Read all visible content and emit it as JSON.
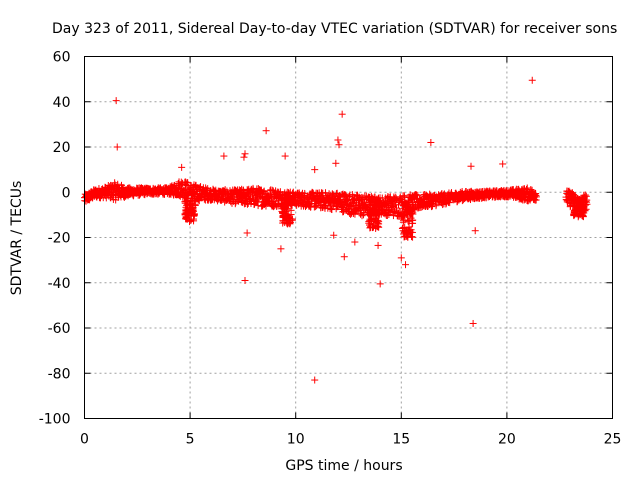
{
  "chart_data": {
    "type": "scatter",
    "title": "Day 323 of 2011, Sidereal Day-to-day VTEC variation (SDTVAR) for receiver sons",
    "xlabel": "GPS time / hours",
    "ylabel": "SDTVAR / TECUs",
    "xlim": [
      0,
      25
    ],
    "ylim": [
      -100,
      60
    ],
    "xticks": [
      0,
      5,
      10,
      15,
      20,
      25
    ],
    "yticks": [
      -100,
      -80,
      -60,
      -40,
      -20,
      0,
      20,
      40,
      60
    ],
    "grid": true,
    "marker": "+",
    "color": "#ff0000",
    "outliers": [
      {
        "x": 1.5,
        "y": 40.5
      },
      {
        "x": 1.55,
        "y": 20
      },
      {
        "x": 21.2,
        "y": 49.5
      },
      {
        "x": 12.2,
        "y": 34.5
      },
      {
        "x": 8.6,
        "y": 27.2
      },
      {
        "x": 12.0,
        "y": 23.1
      },
      {
        "x": 12.05,
        "y": 21.0
      },
      {
        "x": 16.4,
        "y": 22.0
      },
      {
        "x": 19.8,
        "y": 12.5
      },
      {
        "x": 18.3,
        "y": 11.5
      },
      {
        "x": 7.6,
        "y": 17.0
      },
      {
        "x": 7.55,
        "y": 15.5
      },
      {
        "x": 6.6,
        "y": 16.0
      },
      {
        "x": 9.5,
        "y": 16.0
      },
      {
        "x": 11.9,
        "y": 12.8
      },
      {
        "x": 10.9,
        "y": 10.0
      },
      {
        "x": 4.6,
        "y": 11.0
      },
      {
        "x": 7.6,
        "y": -39.0
      },
      {
        "x": 10.9,
        "y": -83.0
      },
      {
        "x": 14.0,
        "y": -40.5
      },
      {
        "x": 18.4,
        "y": -58.0
      },
      {
        "x": 12.3,
        "y": -28.5
      },
      {
        "x": 15.2,
        "y": -32.0
      },
      {
        "x": 15.0,
        "y": -29.0
      },
      {
        "x": 9.3,
        "y": -25.0
      },
      {
        "x": 7.7,
        "y": -18.0
      },
      {
        "x": 11.8,
        "y": -19.0
      },
      {
        "x": 18.5,
        "y": -17.0
      },
      {
        "x": 13.9,
        "y": -23.5
      },
      {
        "x": 12.8,
        "y": -22.0
      }
    ],
    "band": [
      {
        "x": 0.0,
        "y": -3.0,
        "spread": 2.0
      },
      {
        "x": 0.5,
        "y": -0.5,
        "spread": 2.0
      },
      {
        "x": 1.0,
        "y": 0.0,
        "spread": 2.5
      },
      {
        "x": 1.5,
        "y": 0.5,
        "spread": 4.0
      },
      {
        "x": 2.0,
        "y": 0.0,
        "spread": 2.0
      },
      {
        "x": 3.0,
        "y": 0.5,
        "spread": 1.5
      },
      {
        "x": 4.0,
        "y": 0.5,
        "spread": 1.5
      },
      {
        "x": 4.6,
        "y": 2.0,
        "spread": 4.0
      },
      {
        "x": 5.0,
        "y": 0.0,
        "spread": 4.0
      },
      {
        "x": 6.0,
        "y": -1.0,
        "spread": 2.5
      },
      {
        "x": 7.0,
        "y": -2.0,
        "spread": 3.0
      },
      {
        "x": 8.0,
        "y": -2.0,
        "spread": 4.0
      },
      {
        "x": 9.0,
        "y": -2.5,
        "spread": 4.0
      },
      {
        "x": 10.0,
        "y": -3.0,
        "spread": 3.0
      },
      {
        "x": 11.0,
        "y": -3.5,
        "spread": 3.5
      },
      {
        "x": 12.0,
        "y": -4.0,
        "spread": 4.0
      },
      {
        "x": 13.0,
        "y": -6.0,
        "spread": 5.0
      },
      {
        "x": 14.0,
        "y": -6.0,
        "spread": 4.0
      },
      {
        "x": 15.0,
        "y": -6.0,
        "spread": 5.0
      },
      {
        "x": 16.0,
        "y": -4.0,
        "spread": 3.0
      },
      {
        "x": 17.0,
        "y": -3.0,
        "spread": 2.5
      },
      {
        "x": 18.0,
        "y": -1.5,
        "spread": 2.0
      },
      {
        "x": 19.0,
        "y": -1.0,
        "spread": 1.5
      },
      {
        "x": 20.0,
        "y": -0.5,
        "spread": 1.5
      },
      {
        "x": 21.0,
        "y": -1.0,
        "spread": 3.0
      },
      {
        "x": 21.4,
        "y": -1.0,
        "spread": 2.5
      }
    ],
    "band_segment_2": [
      {
        "x": 22.8,
        "y": -2.0,
        "spread": 3.0
      },
      {
        "x": 23.2,
        "y": -4.0,
        "spread": 4.0
      },
      {
        "x": 23.5,
        "y": -7.0,
        "spread": 4.0
      },
      {
        "x": 23.8,
        "y": -3.0,
        "spread": 4.0
      }
    ],
    "dips": [
      {
        "x": 5.0,
        "y_min": -13.0
      },
      {
        "x": 9.6,
        "y_min": -14.0
      },
      {
        "x": 13.7,
        "y_min": -16.0
      },
      {
        "x": 15.3,
        "y_min": -20.0
      },
      {
        "x": 23.4,
        "y_min": -11.0
      }
    ]
  }
}
